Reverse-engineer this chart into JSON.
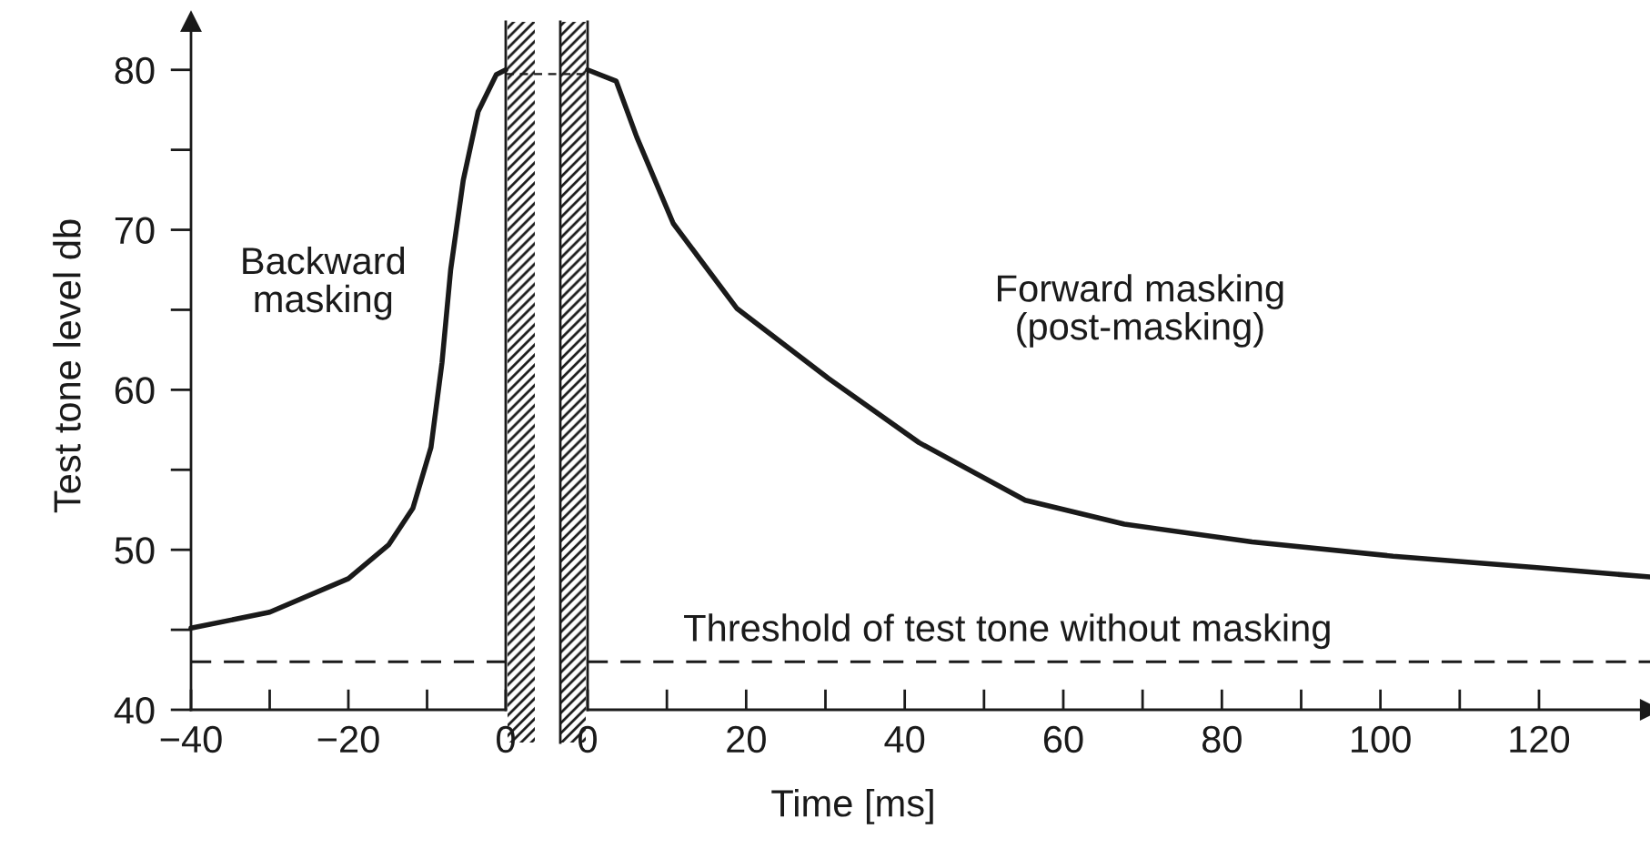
{
  "chart_data": [
    {
      "type": "line",
      "ylabel": "Test tone level db",
      "annotations": [
        "Backward\nmasking"
      ],
      "x": [
        -40,
        -30,
        -20,
        -14.9,
        -11.8,
        -9.5,
        -8.1,
        -7,
        -5.4,
        -3.5,
        -1.2,
        0
      ],
      "series": [
        {
          "color": "#1a1a1a",
          "values": [
            45.1,
            46.1,
            48.2,
            50.3,
            52.6,
            56.4,
            61.7,
            67.5,
            73.1,
            77.4,
            79.7,
            80
          ]
        }
      ],
      "xlim": [
        -40,
        0
      ],
      "ylim": [
        40,
        83
      ],
      "xticks": [
        {
          "value": -40,
          "label": "−40"
        },
        {
          "value": -30,
          "label": null
        },
        {
          "value": -20,
          "label": "−20"
        },
        {
          "value": -10,
          "label": null
        },
        0
      ],
      "yticks": [
        40,
        {
          "value": 45,
          "label": null
        },
        50,
        {
          "value": 55,
          "label": null
        },
        60,
        {
          "value": 65,
          "label": null
        },
        70,
        {
          "value": 75,
          "label": null
        },
        80
      ],
      "ref_lines": [
        {
          "axis": "y",
          "value": 43,
          "color": "#1a1a1a",
          "line_style": "dashed"
        }
      ],
      "marker": "none",
      "line_style": "solid"
    },
    {
      "type": "line",
      "xlabel": "Time [ms]",
      "annotations": [
        "Forward masking\n(post-masking)"
      ],
      "x": [
        0,
        3.6,
        6.2,
        10.8,
        18.8,
        30.4,
        41.8,
        55.2,
        67.7,
        83.8,
        101.6,
        119.4,
        134
      ],
      "series": [
        {
          "color": "#1a1a1a",
          "values": [
            80,
            79.3,
            75.8,
            70.4,
            65.1,
            60.7,
            56.7,
            53.1,
            51.6,
            50.5,
            49.6,
            48.9,
            48.3
          ]
        }
      ],
      "xlim": [
        0,
        134
      ],
      "ylim": [
        40,
        83
      ],
      "xticks": [
        0,
        {
          "value": 10,
          "label": null
        },
        20,
        {
          "value": 30,
          "label": null
        },
        40,
        {
          "value": 50,
          "label": null
        },
        60,
        {
          "value": 70,
          "label": null
        },
        80,
        {
          "value": 90,
          "label": null
        },
        100,
        {
          "value": 110,
          "label": null
        },
        120
      ],
      "ref_lines": [
        {
          "axis": "y",
          "value": 43,
          "label": "Threshold of test tone without masking",
          "color": "#1a1a1a",
          "line_style": "dashed"
        }
      ],
      "tick_labels": "x",
      "marker": "none",
      "line_style": "solid"
    }
  ]
}
